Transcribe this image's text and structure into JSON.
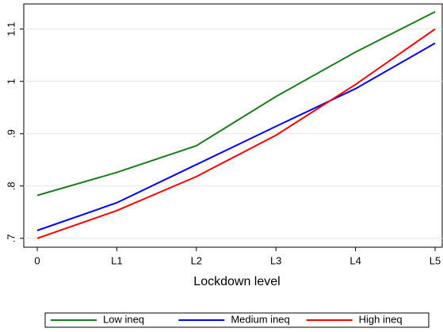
{
  "chart_data": {
    "type": "line",
    "x_label": "Lockdown level",
    "categories": [
      "0",
      "L1",
      "L2",
      "L3",
      "L4",
      "L5"
    ],
    "series": [
      {
        "name": "Low ineq",
        "color": "#1a7f1a",
        "values": [
          0.782,
          0.826,
          0.877,
          0.971,
          1.056,
          1.133
        ]
      },
      {
        "name": "Medium ineq",
        "color": "#0000ff",
        "values": [
          0.715,
          0.768,
          0.841,
          0.914,
          0.986,
          1.073
        ]
      },
      {
        "name": "High ineq",
        "color": "#ff0000",
        "values": [
          0.7,
          0.753,
          0.818,
          0.897,
          0.994,
          1.1
        ]
      }
    ],
    "ylim": [
      0.683,
      1.148
    ],
    "yticks": [
      {
        "value": 0.7,
        "label": ".7"
      },
      {
        "value": 0.8,
        "label": ".8"
      },
      {
        "value": 0.9,
        "label": ".9"
      },
      1,
      1.1
    ],
    "grid": true,
    "legend": "bottom"
  }
}
